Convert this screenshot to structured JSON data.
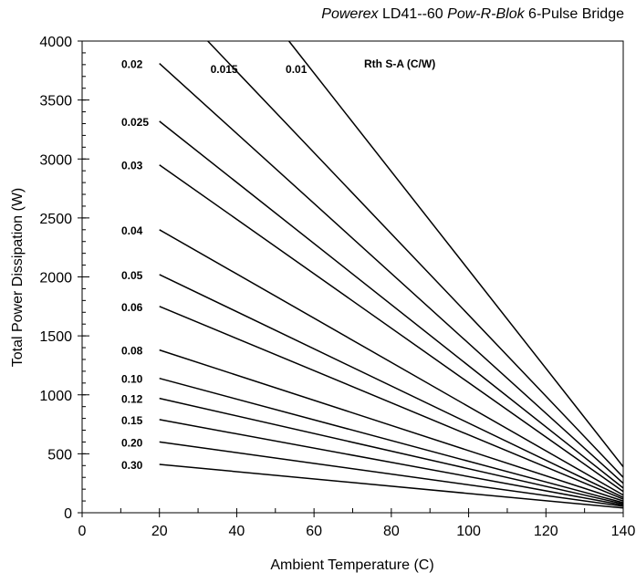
{
  "chart_data": {
    "type": "line",
    "title_parts": [
      {
        "text": "Powerex",
        "italic": true
      },
      {
        "text": " LD41--60 ",
        "italic": false
      },
      {
        "text": "Pow-R-Blok",
        "italic": true
      },
      {
        "text": " 6-Pulse Bridge",
        "italic": false
      }
    ],
    "xlabel": "Ambient Temperature (C)",
    "ylabel": "Total Power Dissipation (W)",
    "xlim": [
      0,
      140
    ],
    "ylim": [
      0,
      4000
    ],
    "x_ticks": [
      0,
      20,
      40,
      60,
      80,
      100,
      120,
      140
    ],
    "y_ticks": [
      0,
      500,
      1000,
      1500,
      2000,
      2500,
      3000,
      3500,
      4000
    ],
    "x_minor_step": 10,
    "y_minor_step": 100,
    "grid": false,
    "legend_title": "Rth S-A (C/W)",
    "series": [
      {
        "name": "0.01",
        "points": [
          [
            53.5,
            4000
          ],
          [
            140,
            390
          ]
        ]
      },
      {
        "name": "0.015",
        "points": [
          [
            32.5,
            4000
          ],
          [
            140,
            300
          ]
        ]
      },
      {
        "name": "0.02",
        "points": [
          [
            20,
            3810
          ],
          [
            140,
            250
          ]
        ]
      },
      {
        "name": "0.025",
        "points": [
          [
            20,
            3320
          ],
          [
            140,
            210
          ]
        ]
      },
      {
        "name": "0.03",
        "points": [
          [
            20,
            2950
          ],
          [
            140,
            180
          ]
        ]
      },
      {
        "name": "0.04",
        "points": [
          [
            20,
            2400
          ],
          [
            140,
            150
          ]
        ]
      },
      {
        "name": "0.05",
        "points": [
          [
            20,
            2020
          ],
          [
            140,
            130
          ]
        ]
      },
      {
        "name": "0.06",
        "points": [
          [
            20,
            1750
          ],
          [
            140,
            115
          ]
        ]
      },
      {
        "name": "0.08",
        "points": [
          [
            20,
            1380
          ],
          [
            140,
            100
          ]
        ]
      },
      {
        "name": "0.10",
        "points": [
          [
            20,
            1140
          ],
          [
            140,
            85
          ]
        ]
      },
      {
        "name": "0.12",
        "points": [
          [
            20,
            970
          ],
          [
            140,
            75
          ]
        ]
      },
      {
        "name": "0.15",
        "points": [
          [
            20,
            790
          ],
          [
            140,
            65
          ]
        ]
      },
      {
        "name": "0.20",
        "points": [
          [
            20,
            600
          ],
          [
            140,
            55
          ]
        ]
      },
      {
        "name": "0.30",
        "points": [
          [
            20,
            410
          ],
          [
            140,
            40
          ]
        ]
      }
    ]
  }
}
